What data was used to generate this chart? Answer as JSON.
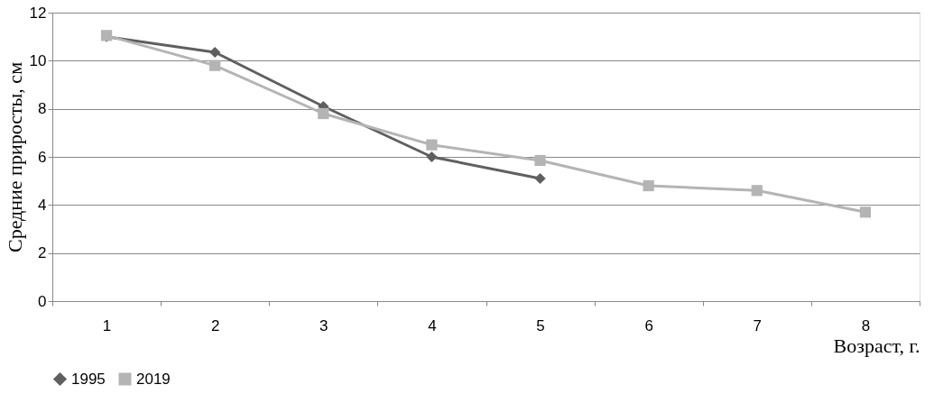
{
  "chart_data": {
    "type": "line",
    "xlabel": "Возраст, г.",
    "ylabel": "Средние приросты, см",
    "categories": [
      "1",
      "2",
      "3",
      "4",
      "5",
      "6",
      "7",
      "8"
    ],
    "series": [
      {
        "name": "1995",
        "color": "#5f5f5f",
        "marker": "diamond",
        "values": [
          11.0,
          10.35,
          8.1,
          6.0,
          5.1,
          null,
          null,
          null
        ]
      },
      {
        "name": "2019",
        "color": "#b4b4b4",
        "marker": "square",
        "values": [
          11.05,
          9.8,
          7.8,
          6.5,
          5.85,
          4.8,
          4.6,
          3.7
        ]
      }
    ],
    "ylim": [
      0,
      12
    ],
    "yticks": [
      0,
      2,
      4,
      6,
      8,
      10,
      12
    ],
    "grid": "y",
    "legend": "bottom",
    "line_style": "solid"
  }
}
